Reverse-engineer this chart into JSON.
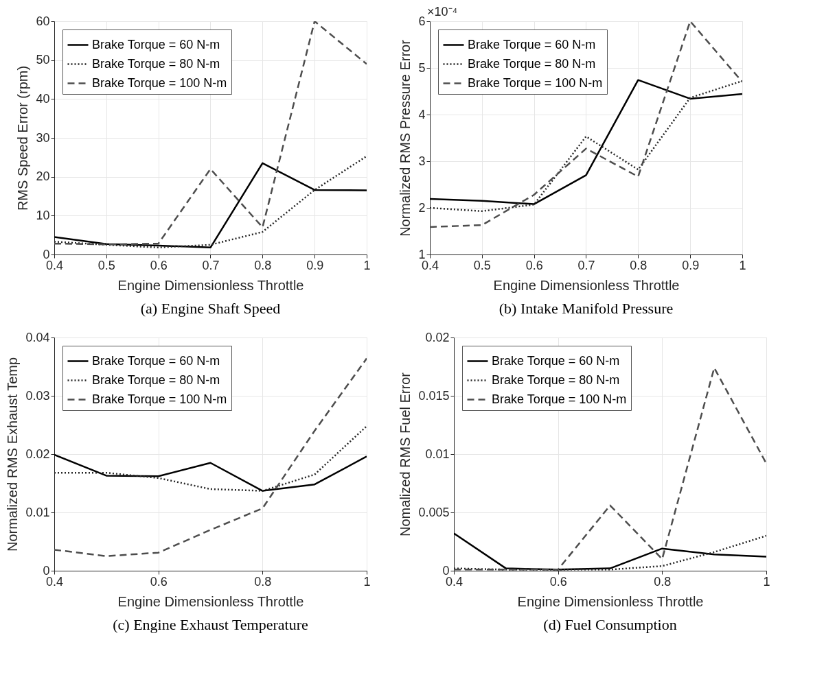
{
  "chart_data": [
    {
      "type": "line",
      "title": "(a) Engine Shaft Speed",
      "xlabel": "Engine Dimensionless Throttle",
      "ylabel": "RMS Speed Error (rpm)",
      "x": [
        0.4,
        0.5,
        0.6,
        0.7,
        0.8,
        0.9,
        1
      ],
      "xlim": [
        0.4,
        1
      ],
      "xticks": [
        0.4,
        0.5,
        0.6,
        0.7,
        0.8,
        0.9,
        1
      ],
      "ylim": [
        0,
        60
      ],
      "yticks": [
        0,
        10,
        20,
        30,
        40,
        50,
        60
      ],
      "grid": true,
      "legend": "top left",
      "marker": "none",
      "series": [
        {
          "name": "Brake Torque = 60 N-m",
          "color": "#000000",
          "line_style": "solid",
          "values": [
            4.5,
            2.7,
            2.3,
            1.8,
            23.5,
            16.6,
            16.5
          ]
        },
        {
          "name": "Brake Torque = 80 N-m",
          "color": "#262626",
          "line_style": "dotted",
          "values": [
            3.3,
            2.5,
            1.8,
            2.5,
            5.8,
            16.6,
            25.3
          ]
        },
        {
          "name": "Brake Torque = 100 N-m",
          "color": "#4d4d4d",
          "line_style": "dashed",
          "values": [
            2.8,
            2.6,
            2.8,
            22.0,
            7.0,
            60.0,
            49.0
          ]
        }
      ]
    },
    {
      "type": "line",
      "title": "(b) Intake Manifold Pressure",
      "xlabel": "Engine Dimensionless Throttle",
      "ylabel": "Normalized RMS Pressure Error",
      "annotations": [
        "×10⁻⁴"
      ],
      "x": [
        0.4,
        0.5,
        0.6,
        0.7,
        0.8,
        0.9,
        1
      ],
      "xlim": [
        0.4,
        1
      ],
      "xticks": [
        0.4,
        0.5,
        0.6,
        0.7,
        0.8,
        0.9,
        1
      ],
      "ylim": [
        1,
        6
      ],
      "yticks": [
        1,
        2,
        3,
        4,
        5,
        6
      ],
      "grid": true,
      "legend": "top left",
      "marker": "none",
      "series": [
        {
          "name": "Brake Torque = 60 N-m",
          "color": "#000000",
          "line_style": "solid",
          "values": [
            2.19,
            2.15,
            2.08,
            2.7,
            4.74,
            4.34,
            4.44
          ]
        },
        {
          "name": "Brake Torque = 80 N-m",
          "color": "#262626",
          "line_style": "dotted",
          "values": [
            2.0,
            1.93,
            2.07,
            3.53,
            2.82,
            4.36,
            4.72
          ]
        },
        {
          "name": "Brake Torque = 100 N-m",
          "color": "#4d4d4d",
          "line_style": "dashed",
          "values": [
            1.59,
            1.63,
            2.28,
            3.27,
            2.67,
            6.0,
            4.7
          ]
        }
      ]
    },
    {
      "type": "line",
      "title": "(c) Engine Exhaust Temperature",
      "xlabel": "Engine Dimensionless Throttle",
      "ylabel": "Normalized RMS Exhaust Temp",
      "x": [
        0.4,
        0.5,
        0.6,
        0.7,
        0.8,
        0.9,
        1
      ],
      "xlim": [
        0.4,
        1
      ],
      "xticks": [
        0.4,
        0.6,
        0.8,
        1
      ],
      "ylim": [
        0,
        0.04
      ],
      "yticks": [
        0,
        0.01,
        0.02,
        0.03,
        0.04
      ],
      "grid": true,
      "legend": "top left",
      "marker": "none",
      "series": [
        {
          "name": "Brake Torque = 60 N-m",
          "color": "#000000",
          "line_style": "solid",
          "values": [
            0.0199,
            0.0163,
            0.0162,
            0.0185,
            0.0137,
            0.0148,
            0.0196
          ]
        },
        {
          "name": "Brake Torque = 80 N-m",
          "color": "#262626",
          "line_style": "dotted",
          "values": [
            0.0168,
            0.0168,
            0.0159,
            0.014,
            0.0137,
            0.0165,
            0.0248
          ]
        },
        {
          "name": "Brake Torque = 100 N-m",
          "color": "#4d4d4d",
          "line_style": "dashed",
          "values": [
            0.0036,
            0.0025,
            0.0031,
            0.007,
            0.0107,
            0.024,
            0.0364
          ]
        }
      ]
    },
    {
      "type": "line",
      "title": "(d) Fuel Consumption",
      "xlabel": "Engine Dimensionless Throttle",
      "ylabel": "Nomalized RMS Fuel Error",
      "x": [
        0.4,
        0.5,
        0.6,
        0.7,
        0.8,
        0.9,
        1
      ],
      "xlim": [
        0.4,
        1
      ],
      "xticks": [
        0.4,
        0.6,
        0.8,
        1
      ],
      "ylim": [
        0,
        0.02
      ],
      "yticks": [
        0,
        0.005,
        0.01,
        0.015,
        0.02
      ],
      "grid": true,
      "legend": "top left",
      "marker": "none",
      "series": [
        {
          "name": "Brake Torque = 60 N-m",
          "color": "#000000",
          "line_style": "solid",
          "values": [
            0.0032,
            0.0002,
            0.0001,
            0.0002,
            0.0019,
            0.0014,
            0.0012
          ]
        },
        {
          "name": "Brake Torque = 80 N-m",
          "color": "#262626",
          "line_style": "dotted",
          "values": [
            0.0002,
            0.0001,
            0.0001,
            0.0001,
            0.0004,
            0.0016,
            0.003
          ]
        },
        {
          "name": "Brake Torque = 100 N-m",
          "color": "#4d4d4d",
          "line_style": "dashed",
          "values": [
            0.0001,
            0.0001,
            0.0001,
            0.0056,
            0.001,
            0.0174,
            0.0092
          ]
        }
      ]
    }
  ]
}
